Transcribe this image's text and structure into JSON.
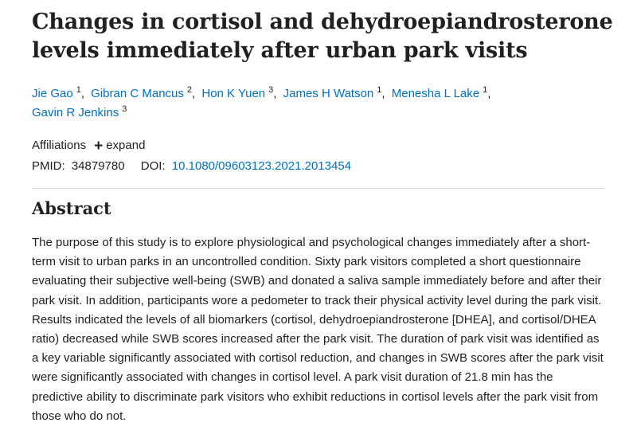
{
  "article": {
    "title": "Changes in cortisol and dehydroepiandrosterone levels immediately after urban park visits"
  },
  "authors": [
    {
      "name": "Jie Gao",
      "affiliation": "1"
    },
    {
      "name": "Gibran C Mancus",
      "affiliation": "2"
    },
    {
      "name": "Hon K Yuen",
      "affiliation": "3"
    },
    {
      "name": "James H Watson",
      "affiliation": "1"
    },
    {
      "name": "Menesha L Lake",
      "affiliation": "1"
    },
    {
      "name": "Gavin R Jenkins",
      "affiliation": "3"
    }
  ],
  "affiliations": {
    "label": "Affiliations",
    "toggle_icon": "plus-icon",
    "toggle_label": "expand"
  },
  "identifiers": {
    "pmid_label": "PMID:",
    "pmid_value": "34879780",
    "doi_label": "DOI:",
    "doi_value": "10.1080/09603123.2021.2013454"
  },
  "abstract": {
    "heading": "Abstract",
    "text": "The purpose of this study is to explore physiological and psychological changes immediately after a short-term visit to urban parks in an uncontrolled condition. Sixty park visitors completed a short questionnaire evaluating their subjective well-being (SWB) and donated a saliva sample immediately before and after their park visit. In addition, participants wore a pedometer to track their physical activity level during the park visit. Results indicated the levels of all biomarkers (cortisol, dehydroepiandrosterone [DHEA], and cortisol/DHEA ratio) decreased while SWB scores increased after the park visit. The duration of park visit was identified as a key variable significantly associated with cortisol reduction, and changes in SWB scores after the park visit were significantly associated with changes in cortisol level. A park visit duration of 21.8 min has the predictive ability to discriminate park visitors who exhibit reductions in cortisol levels after the park visit from those who do not."
  },
  "colors": {
    "link": "#0071bc",
    "text": "#212121"
  }
}
